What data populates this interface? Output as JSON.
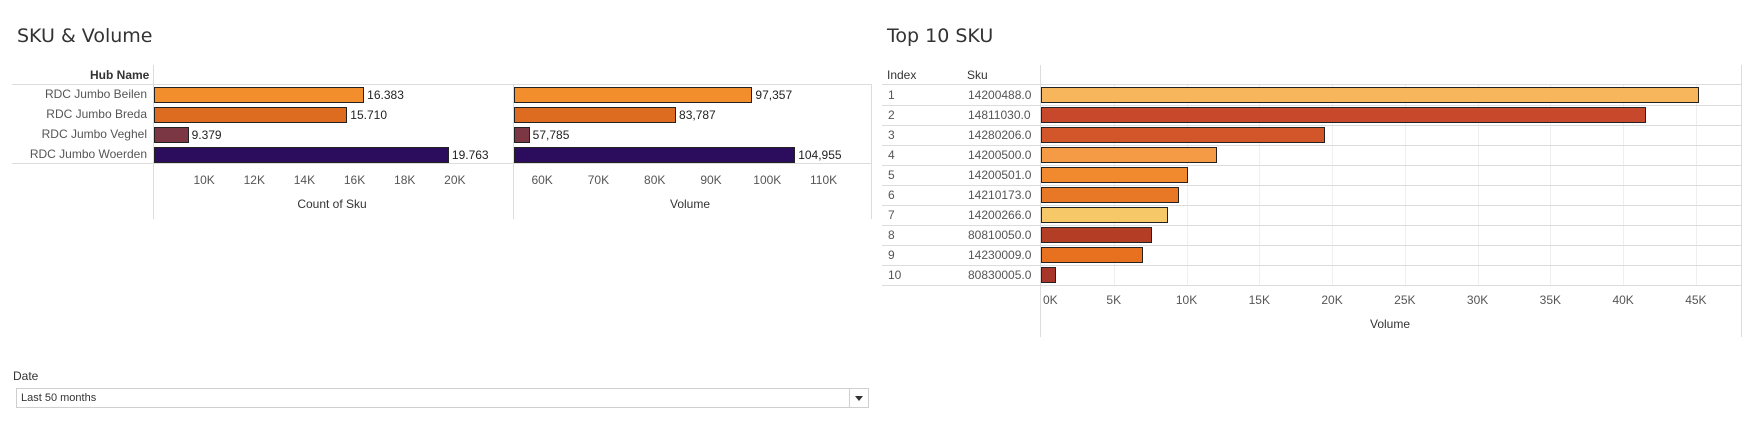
{
  "left_title": "SKU & Volume",
  "right_title": "Top 10 SKU",
  "hub_header": "Hub Name",
  "index_header": "Index",
  "sku_header": "Sku",
  "filter": {
    "label": "Date",
    "value": "Last 50 months"
  },
  "chart_data": [
    {
      "type": "bar",
      "orientation": "horizontal",
      "categories": [
        "RDC Jumbo Beilen",
        "RDC Jumbo Breda",
        "RDC Jumbo Veghel",
        "RDC Jumbo Woerden"
      ],
      "values": [
        16383,
        15710,
        9379,
        19763
      ],
      "value_labels": [
        "16.383",
        "15.710",
        "9.379",
        "19.763"
      ],
      "colors": [
        "#f28e2b",
        "#de6c20",
        "#7b3844",
        "#2c0c5c"
      ],
      "xlabel": "Count of Sku",
      "xlim": [
        8000,
        22000
      ],
      "ticks": [
        10000,
        12000,
        14000,
        16000,
        18000,
        20000
      ],
      "tick_labels": [
        "10K",
        "12K",
        "14K",
        "16K",
        "18K",
        "20K"
      ]
    },
    {
      "type": "bar",
      "orientation": "horizontal",
      "categories": [
        "RDC Jumbo Beilen",
        "RDC Jumbo Breda",
        "RDC Jumbo Veghel",
        "RDC Jumbo Woerden"
      ],
      "values": [
        97357,
        83787,
        57785,
        104955
      ],
      "value_labels": [
        "97,357",
        "83,787",
        "57,785",
        "104,955"
      ],
      "colors": [
        "#f28e2b",
        "#de6c20",
        "#7b3844",
        "#2c0c5c"
      ],
      "xlabel": "Volume",
      "xlim": [
        55000,
        117000
      ],
      "ticks": [
        60000,
        70000,
        80000,
        90000,
        100000,
        110000
      ],
      "tick_labels": [
        "60K",
        "70K",
        "80K",
        "90K",
        "100K",
        "110K"
      ]
    },
    {
      "type": "bar",
      "orientation": "horizontal",
      "index": [
        "1",
        "2",
        "3",
        "4",
        "5",
        "6",
        "7",
        "8",
        "9",
        "10"
      ],
      "categories": [
        "14200488.0",
        "14811030.0",
        "14280206.0",
        "14200500.0",
        "14200501.0",
        "14210173.0",
        "14200266.0",
        "80810050.0",
        "14230009.0",
        "80830005.0"
      ],
      "values": [
        45200,
        41600,
        19500,
        12100,
        10100,
        9500,
        8700,
        7600,
        7000,
        1000
      ],
      "colors": [
        "#f7b65c",
        "#c7482a",
        "#d2562a",
        "#f59a45",
        "#f18a2e",
        "#e97826",
        "#f7c867",
        "#b43d26",
        "#e7711f",
        "#a8352a"
      ],
      "xlabel": "Volume",
      "xlim": [
        0,
        47000
      ],
      "ticks": [
        0,
        5000,
        10000,
        15000,
        20000,
        25000,
        30000,
        35000,
        40000,
        45000
      ],
      "tick_labels": [
        "0K",
        "5K",
        "10K",
        "15K",
        "20K",
        "25K",
        "30K",
        "35K",
        "40K",
        "45K"
      ]
    }
  ]
}
